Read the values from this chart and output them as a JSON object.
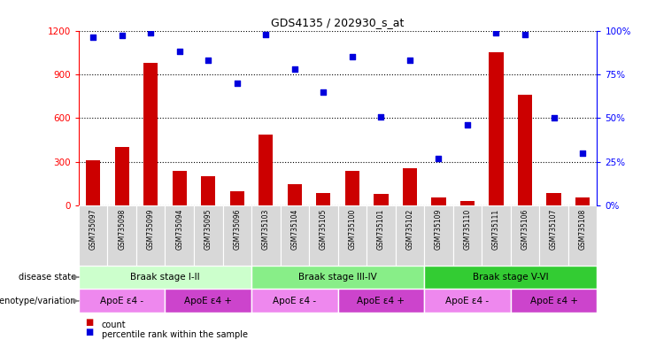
{
  "title": "GDS4135 / 202930_s_at",
  "samples": [
    "GSM735097",
    "GSM735098",
    "GSM735099",
    "GSM735094",
    "GSM735095",
    "GSM735096",
    "GSM735103",
    "GSM735104",
    "GSM735105",
    "GSM735100",
    "GSM735101",
    "GSM735102",
    "GSM735109",
    "GSM735110",
    "GSM735111",
    "GSM735106",
    "GSM735107",
    "GSM735108"
  ],
  "counts": [
    310,
    400,
    980,
    240,
    200,
    100,
    490,
    150,
    90,
    240,
    80,
    260,
    60,
    30,
    1050,
    760,
    90,
    55
  ],
  "percentiles": [
    96,
    97,
    99,
    88,
    83,
    70,
    98,
    78,
    65,
    85,
    51,
    83,
    27,
    46,
    99,
    98,
    50,
    30
  ],
  "ylim_left": [
    0,
    1200
  ],
  "ylim_right": [
    0,
    100
  ],
  "yticks_left": [
    0,
    300,
    600,
    900,
    1200
  ],
  "yticks_right": [
    0,
    25,
    50,
    75,
    100
  ],
  "bar_color": "#cc0000",
  "dot_color": "#0000dd",
  "disease_state_groups": [
    {
      "label": "Braak stage I-II",
      "start": 0,
      "end": 6,
      "color": "#ccffcc"
    },
    {
      "label": "Braak stage III-IV",
      "start": 6,
      "end": 12,
      "color": "#88ee88"
    },
    {
      "label": "Braak stage V-VI",
      "start": 12,
      "end": 18,
      "color": "#33cc33"
    }
  ],
  "genotype_groups": [
    {
      "label": "ApoE ε4 -",
      "start": 0,
      "end": 3,
      "color": "#ee88ee"
    },
    {
      "label": "ApoE ε4 +",
      "start": 3,
      "end": 6,
      "color": "#cc44cc"
    },
    {
      "label": "ApoE ε4 -",
      "start": 6,
      "end": 9,
      "color": "#ee88ee"
    },
    {
      "label": "ApoE ε4 +",
      "start": 9,
      "end": 12,
      "color": "#cc44cc"
    },
    {
      "label": "ApoE ε4 -",
      "start": 12,
      "end": 15,
      "color": "#ee88ee"
    },
    {
      "label": "ApoE ε4 +",
      "start": 15,
      "end": 18,
      "color": "#cc44cc"
    }
  ],
  "disease_label": "disease state",
  "genotype_label": "genotype/variation",
  "legend_count_label": "count",
  "legend_pct_label": "percentile rank within the sample",
  "bar_width": 0.5
}
